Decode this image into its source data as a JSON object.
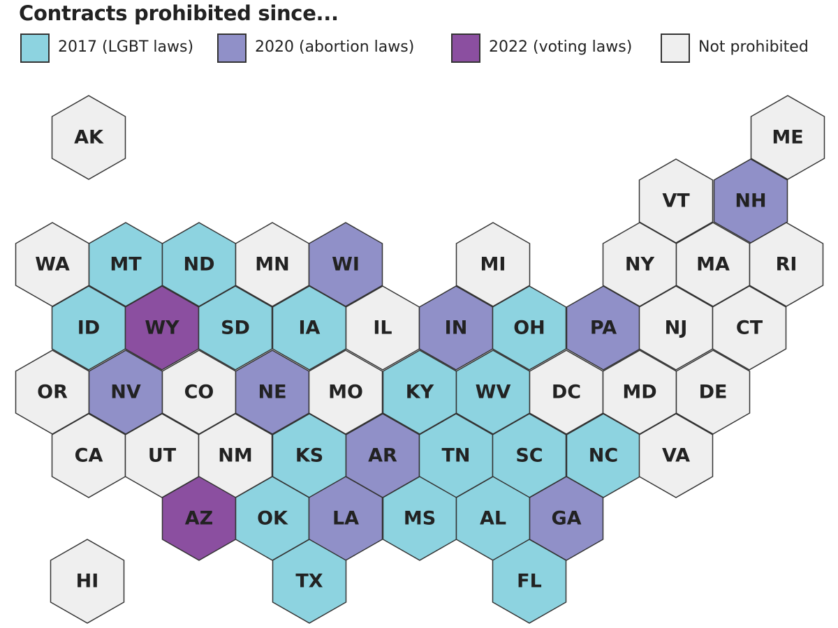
{
  "title": "Contracts prohibited since...",
  "legend": [
    {
      "key": "lgbt2017",
      "label": "2017 (LGBT laws)",
      "color": "#8dd3e0"
    },
    {
      "key": "abortion2020",
      "label": "2020 (abortion laws)",
      "color": "#9090c8"
    },
    {
      "key": "voting2022",
      "label": "2022 (voting laws)",
      "color": "#8b4fa0"
    },
    {
      "key": "none",
      "label": "Not prohibited",
      "color": "#efefef"
    }
  ],
  "states": [
    {
      "abbr": "AK",
      "cat": "none"
    },
    {
      "abbr": "ME",
      "cat": "none"
    },
    {
      "abbr": "VT",
      "cat": "none"
    },
    {
      "abbr": "NH",
      "cat": "abortion2020"
    },
    {
      "abbr": "WA",
      "cat": "none"
    },
    {
      "abbr": "MT",
      "cat": "lgbt2017"
    },
    {
      "abbr": "ND",
      "cat": "lgbt2017"
    },
    {
      "abbr": "MN",
      "cat": "none"
    },
    {
      "abbr": "WI",
      "cat": "abortion2020"
    },
    {
      "abbr": "MI",
      "cat": "none"
    },
    {
      "abbr": "NY",
      "cat": "none"
    },
    {
      "abbr": "MA",
      "cat": "none"
    },
    {
      "abbr": "RI",
      "cat": "none"
    },
    {
      "abbr": "ID",
      "cat": "lgbt2017"
    },
    {
      "abbr": "WY",
      "cat": "voting2022"
    },
    {
      "abbr": "SD",
      "cat": "lgbt2017"
    },
    {
      "abbr": "IA",
      "cat": "lgbt2017"
    },
    {
      "abbr": "IL",
      "cat": "none"
    },
    {
      "abbr": "IN",
      "cat": "abortion2020"
    },
    {
      "abbr": "OH",
      "cat": "lgbt2017"
    },
    {
      "abbr": "PA",
      "cat": "abortion2020"
    },
    {
      "abbr": "NJ",
      "cat": "none"
    },
    {
      "abbr": "CT",
      "cat": "none"
    },
    {
      "abbr": "OR",
      "cat": "none"
    },
    {
      "abbr": "NV",
      "cat": "abortion2020"
    },
    {
      "abbr": "CO",
      "cat": "none"
    },
    {
      "abbr": "NE",
      "cat": "abortion2020"
    },
    {
      "abbr": "MO",
      "cat": "none"
    },
    {
      "abbr": "KY",
      "cat": "lgbt2017"
    },
    {
      "abbr": "WV",
      "cat": "lgbt2017"
    },
    {
      "abbr": "DC",
      "cat": "none"
    },
    {
      "abbr": "MD",
      "cat": "none"
    },
    {
      "abbr": "DE",
      "cat": "none"
    },
    {
      "abbr": "CA",
      "cat": "none"
    },
    {
      "abbr": "UT",
      "cat": "none"
    },
    {
      "abbr": "NM",
      "cat": "none"
    },
    {
      "abbr": "KS",
      "cat": "lgbt2017"
    },
    {
      "abbr": "AR",
      "cat": "abortion2020"
    },
    {
      "abbr": "TN",
      "cat": "lgbt2017"
    },
    {
      "abbr": "SC",
      "cat": "lgbt2017"
    },
    {
      "abbr": "NC",
      "cat": "lgbt2017"
    },
    {
      "abbr": "VA",
      "cat": "none"
    },
    {
      "abbr": "AZ",
      "cat": "voting2022"
    },
    {
      "abbr": "OK",
      "cat": "lgbt2017"
    },
    {
      "abbr": "LA",
      "cat": "abortion2020"
    },
    {
      "abbr": "MS",
      "cat": "lgbt2017"
    },
    {
      "abbr": "AL",
      "cat": "lgbt2017"
    },
    {
      "abbr": "GA",
      "cat": "abortion2020"
    },
    {
      "abbr": "HI",
      "cat": "none"
    },
    {
      "abbr": "TX",
      "cat": "lgbt2017"
    },
    {
      "abbr": "FL",
      "cat": "lgbt2017"
    }
  ]
}
